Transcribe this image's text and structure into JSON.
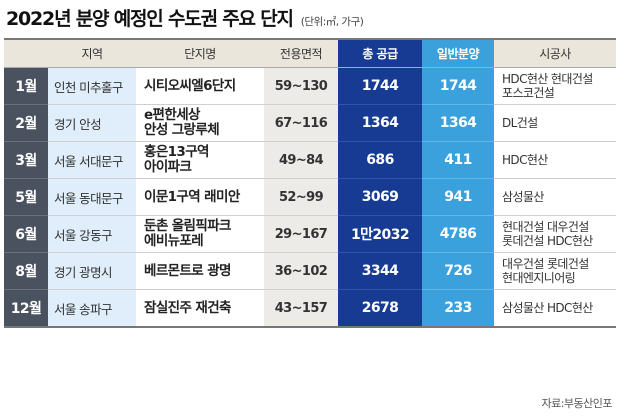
{
  "title": "2022년 분양 예정인 수도권 주요 단지",
  "unit": "(단위:㎡, 가구)",
  "headers": [
    "",
    "지역",
    "단지명",
    "전용면적",
    "총 공급",
    "일반분양",
    "시공사"
  ],
  "rows": [
    {
      "month": "1월",
      "region": "인천 미추홀구",
      "complex": "시티오씨엘6단지",
      "area": "59~130",
      "total": "1744",
      "general": "1744",
      "builder": "HDC현산 현대건설\n포스코건설"
    },
    {
      "month": "2월",
      "region": "경기 안성",
      "complex": "e편한세상\n안성 그랑루체",
      "area": "67~116",
      "total": "1364",
      "general": "1364",
      "builder": "DL건설"
    },
    {
      "month": "3월",
      "region": "서울 서대문구",
      "complex": "홍은13구역\n아이파크",
      "area": "49~84",
      "total": "686",
      "general": "411",
      "builder": "HDC현산"
    },
    {
      "month": "5월",
      "region": "서울 동대문구",
      "complex": "이문1구역 래미안",
      "area": "52~99",
      "total": "3069",
      "general": "941",
      "builder": "삼성물산"
    },
    {
      "month": "6월",
      "region": "서울 강동구",
      "complex": "둔촌 올림픽파크\n에비뉴포레",
      "area": "29~167",
      "total": "1만2032",
      "general": "4786",
      "builder": "현대건설 대우건설\n롯데건설 HDC현산"
    },
    {
      "month": "8월",
      "region": "경기 광명시",
      "complex": "베르몬트로 광명",
      "area": "36~102",
      "total": "3344",
      "general": "726",
      "builder": "대우건설 롯데건설\n현대엔지니어링"
    },
    {
      "month": "12월",
      "region": "서울 송파구",
      "complex": "잠실진주 재건축",
      "area": "43~157",
      "total": "2678",
      "general": "233",
      "builder": "삼성물산 HDC현산"
    }
  ],
  "source": "자료:부동산인포"
}
